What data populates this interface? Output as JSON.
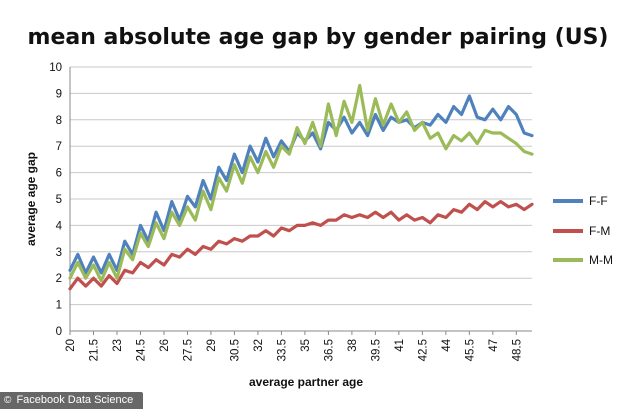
{
  "chart_data": {
    "type": "line",
    "title": "mean absolute age gap by gender pairing (US)",
    "xlabel": "average partner age",
    "ylabel": "average age gap",
    "ylim": [
      0,
      10
    ],
    "yticks": [
      0,
      1,
      2,
      3,
      4,
      5,
      6,
      7,
      8,
      9,
      10
    ],
    "xlim": [
      20,
      49.5
    ],
    "xtick_labels": [
      "20",
      "21.5",
      "23",
      "24.5",
      "26",
      "27.5",
      "29",
      "30.5",
      "32",
      "33.5",
      "35",
      "36.5",
      "38",
      "39.5",
      "41",
      "42.5",
      "44",
      "45.5",
      "47",
      "48.5"
    ],
    "grid": "horizontal",
    "legend_position": "right",
    "x": [
      20,
      20.5,
      21,
      21.5,
      22,
      22.5,
      23,
      23.5,
      24,
      24.5,
      25,
      25.5,
      26,
      26.5,
      27,
      27.5,
      28,
      28.5,
      29,
      29.5,
      30,
      30.5,
      31,
      31.5,
      32,
      32.5,
      33,
      33.5,
      34,
      34.5,
      35,
      35.5,
      36,
      36.5,
      37,
      37.5,
      38,
      38.5,
      39,
      39.5,
      40,
      40.5,
      41,
      41.5,
      42,
      42.5,
      43,
      43.5,
      44,
      44.5,
      45,
      45.5,
      46,
      46.5,
      47,
      47.5,
      48,
      48.5,
      49,
      49.5
    ],
    "series": [
      {
        "name": "F-F",
        "color": "#4f81bd",
        "values": [
          2.3,
          2.9,
          2.2,
          2.8,
          2.2,
          2.9,
          2.3,
          3.4,
          2.9,
          4.0,
          3.4,
          4.5,
          3.8,
          4.9,
          4.2,
          5.1,
          4.7,
          5.7,
          5.0,
          6.2,
          5.7,
          6.7,
          6.0,
          7.0,
          6.4,
          7.3,
          6.6,
          7.2,
          6.8,
          7.5,
          7.2,
          7.5,
          6.9,
          7.9,
          7.6,
          8.1,
          7.5,
          7.9,
          7.4,
          8.2,
          7.6,
          8.1,
          7.9,
          8.0,
          7.7,
          7.9,
          7.8,
          8.2,
          7.9,
          8.5,
          8.2,
          8.9,
          8.1,
          8.0,
          8.4,
          8.0,
          8.5,
          8.2,
          7.5,
          7.4
        ]
      },
      {
        "name": "F-M",
        "color": "#c0504d",
        "values": [
          1.6,
          2.0,
          1.7,
          2.0,
          1.7,
          2.1,
          1.8,
          2.3,
          2.2,
          2.6,
          2.4,
          2.7,
          2.5,
          2.9,
          2.8,
          3.1,
          2.9,
          3.2,
          3.1,
          3.4,
          3.3,
          3.5,
          3.4,
          3.6,
          3.6,
          3.8,
          3.6,
          3.9,
          3.8,
          4.0,
          4.0,
          4.1,
          4.0,
          4.2,
          4.2,
          4.4,
          4.3,
          4.4,
          4.3,
          4.5,
          4.3,
          4.5,
          4.2,
          4.4,
          4.2,
          4.3,
          4.1,
          4.4,
          4.3,
          4.6,
          4.5,
          4.8,
          4.6,
          4.9,
          4.7,
          4.9,
          4.7,
          4.8,
          4.6,
          4.8
        ]
      },
      {
        "name": "M-M",
        "color": "#9bbb59",
        "values": [
          2.0,
          2.6,
          2.0,
          2.5,
          1.9,
          2.6,
          2.0,
          3.1,
          2.7,
          3.7,
          3.2,
          4.1,
          3.5,
          4.5,
          4.0,
          4.7,
          4.2,
          5.3,
          4.6,
          5.8,
          5.3,
          6.3,
          5.6,
          6.6,
          6.0,
          6.8,
          6.2,
          7.0,
          6.7,
          7.7,
          7.1,
          7.9,
          7.0,
          8.6,
          7.4,
          8.7,
          7.9,
          9.3,
          7.6,
          8.8,
          7.8,
          8.6,
          7.9,
          8.3,
          7.6,
          7.9,
          7.3,
          7.5,
          6.9,
          7.4,
          7.2,
          7.5,
          7.1,
          7.6,
          7.5,
          7.5,
          7.3,
          7.1,
          6.8,
          6.7
        ]
      }
    ]
  },
  "credit": {
    "symbol": "©",
    "text": "Facebook Data Science"
  }
}
